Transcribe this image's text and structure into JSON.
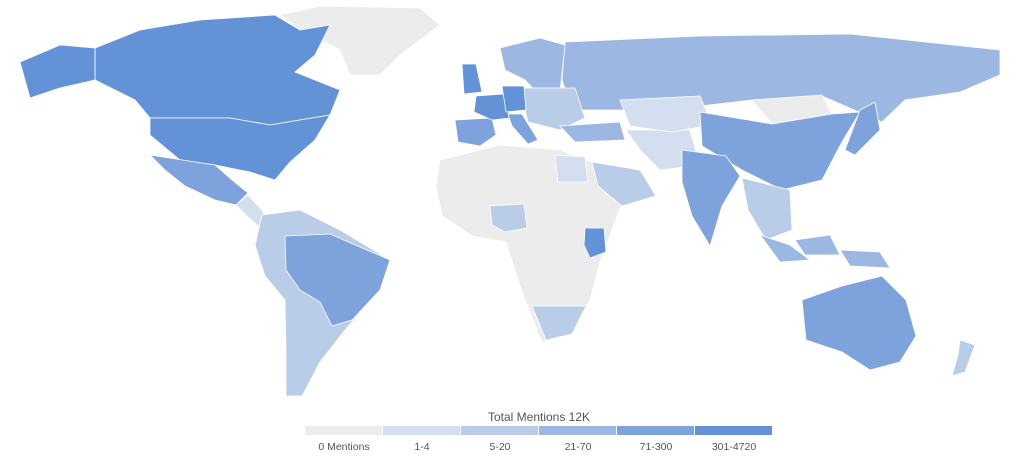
{
  "chart_data": {
    "type": "choropleth-map",
    "title": "Total Mentions 12K",
    "legend": [
      {
        "label": "0 Mentions",
        "color": "#ececec"
      },
      {
        "label": "1-4",
        "color": "#d3deee"
      },
      {
        "label": "5-20",
        "color": "#b9cce8"
      },
      {
        "label": "21-70",
        "color": "#9cb8e2"
      },
      {
        "label": "71-300",
        "color": "#7ea3dc"
      },
      {
        "label": "301-4720",
        "color": "#6393d6"
      }
    ],
    "regions": [
      {
        "name": "Greenland",
        "bin": 0
      },
      {
        "name": "Canada",
        "bin": 5
      },
      {
        "name": "United States",
        "bin": 5
      },
      {
        "name": "Mexico",
        "bin": 4
      },
      {
        "name": "Central America",
        "bin": 1
      },
      {
        "name": "South America",
        "bin": 2
      },
      {
        "name": "Brazil",
        "bin": 4
      },
      {
        "name": "Africa",
        "bin": 0
      },
      {
        "name": "Nigeria",
        "bin": 2
      },
      {
        "name": "Kenya",
        "bin": 5
      },
      {
        "name": "South Africa",
        "bin": 2
      },
      {
        "name": "Egypt",
        "bin": 1
      },
      {
        "name": "Saudi Arabia",
        "bin": 2
      },
      {
        "name": "Iran",
        "bin": 1
      },
      {
        "name": "Russia",
        "bin": 3
      },
      {
        "name": "Kazakhstan",
        "bin": 1
      },
      {
        "name": "Scandinavia",
        "bin": 3
      },
      {
        "name": "Eastern Europe",
        "bin": 2
      },
      {
        "name": "Turkey",
        "bin": 3
      },
      {
        "name": "Spain",
        "bin": 4
      },
      {
        "name": "France",
        "bin": 5
      },
      {
        "name": "Germany",
        "bin": 5
      },
      {
        "name": "United Kingdom",
        "bin": 5
      },
      {
        "name": "Italy",
        "bin": 4
      },
      {
        "name": "Mongolia",
        "bin": 0
      },
      {
        "name": "China",
        "bin": 4
      },
      {
        "name": "India",
        "bin": 4
      },
      {
        "name": "Southeast Asia",
        "bin": 2
      },
      {
        "name": "Indonesia",
        "bin": 3
      },
      {
        "name": "Japan",
        "bin": 4
      },
      {
        "name": "Australia",
        "bin": 4
      },
      {
        "name": "New Zealand",
        "bin": 2
      }
    ]
  }
}
